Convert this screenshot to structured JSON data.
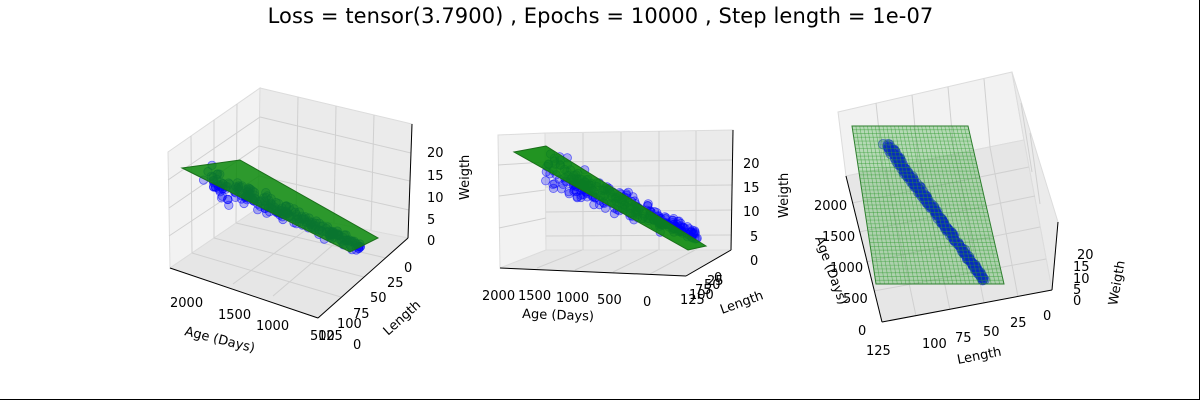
{
  "figure": {
    "title": "Loss = tensor(3.7900) , Epochs = 10000 , Step length = 1e-07"
  },
  "chart_data": [
    {
      "type": "scatter3d",
      "view": "left",
      "xlabel": "Age (Days)",
      "ylabel": "Length",
      "zlabel": "Weigth",
      "xticks": [
        "2000",
        "1500",
        "1000",
        "500",
        "0"
      ],
      "yticks": [
        "0",
        "25",
        "50",
        "75",
        "100",
        "125"
      ],
      "zticks": [
        "0",
        "5",
        "10",
        "15",
        "20"
      ],
      "series": [
        {
          "kind": "points",
          "color": "#0000ff"
        },
        {
          "kind": "plane",
          "color": "#008000"
        }
      ]
    },
    {
      "type": "scatter3d",
      "view": "middle",
      "xlabel": "Age (Days)",
      "ylabel": "Length",
      "zlabel": "Weigth",
      "xticks": [
        "2000",
        "1500",
        "1000",
        "500",
        "0"
      ],
      "yticks": [
        "125",
        "100",
        "75",
        "50",
        "25",
        "0"
      ],
      "zticks": [
        "0",
        "5",
        "10",
        "15",
        "20"
      ],
      "series": [
        {
          "kind": "points",
          "color": "#0000ff"
        },
        {
          "kind": "plane",
          "color": "#008000"
        }
      ]
    },
    {
      "type": "scatter3d",
      "view": "right",
      "xlabel": "Length",
      "ylabel": "Age (Days)",
      "zlabel": "Weigth",
      "xticks": [
        "125",
        "100",
        "75",
        "50",
        "25",
        "0"
      ],
      "yticks": [
        "2000",
        "1500",
        "1000",
        "500",
        "0"
      ],
      "zticks": [
        "0",
        "5",
        "10",
        "15",
        "20"
      ],
      "series": [
        {
          "kind": "points",
          "color": "#0000ff"
        },
        {
          "kind": "wireframe-plane",
          "color": "#008000"
        }
      ]
    }
  ]
}
